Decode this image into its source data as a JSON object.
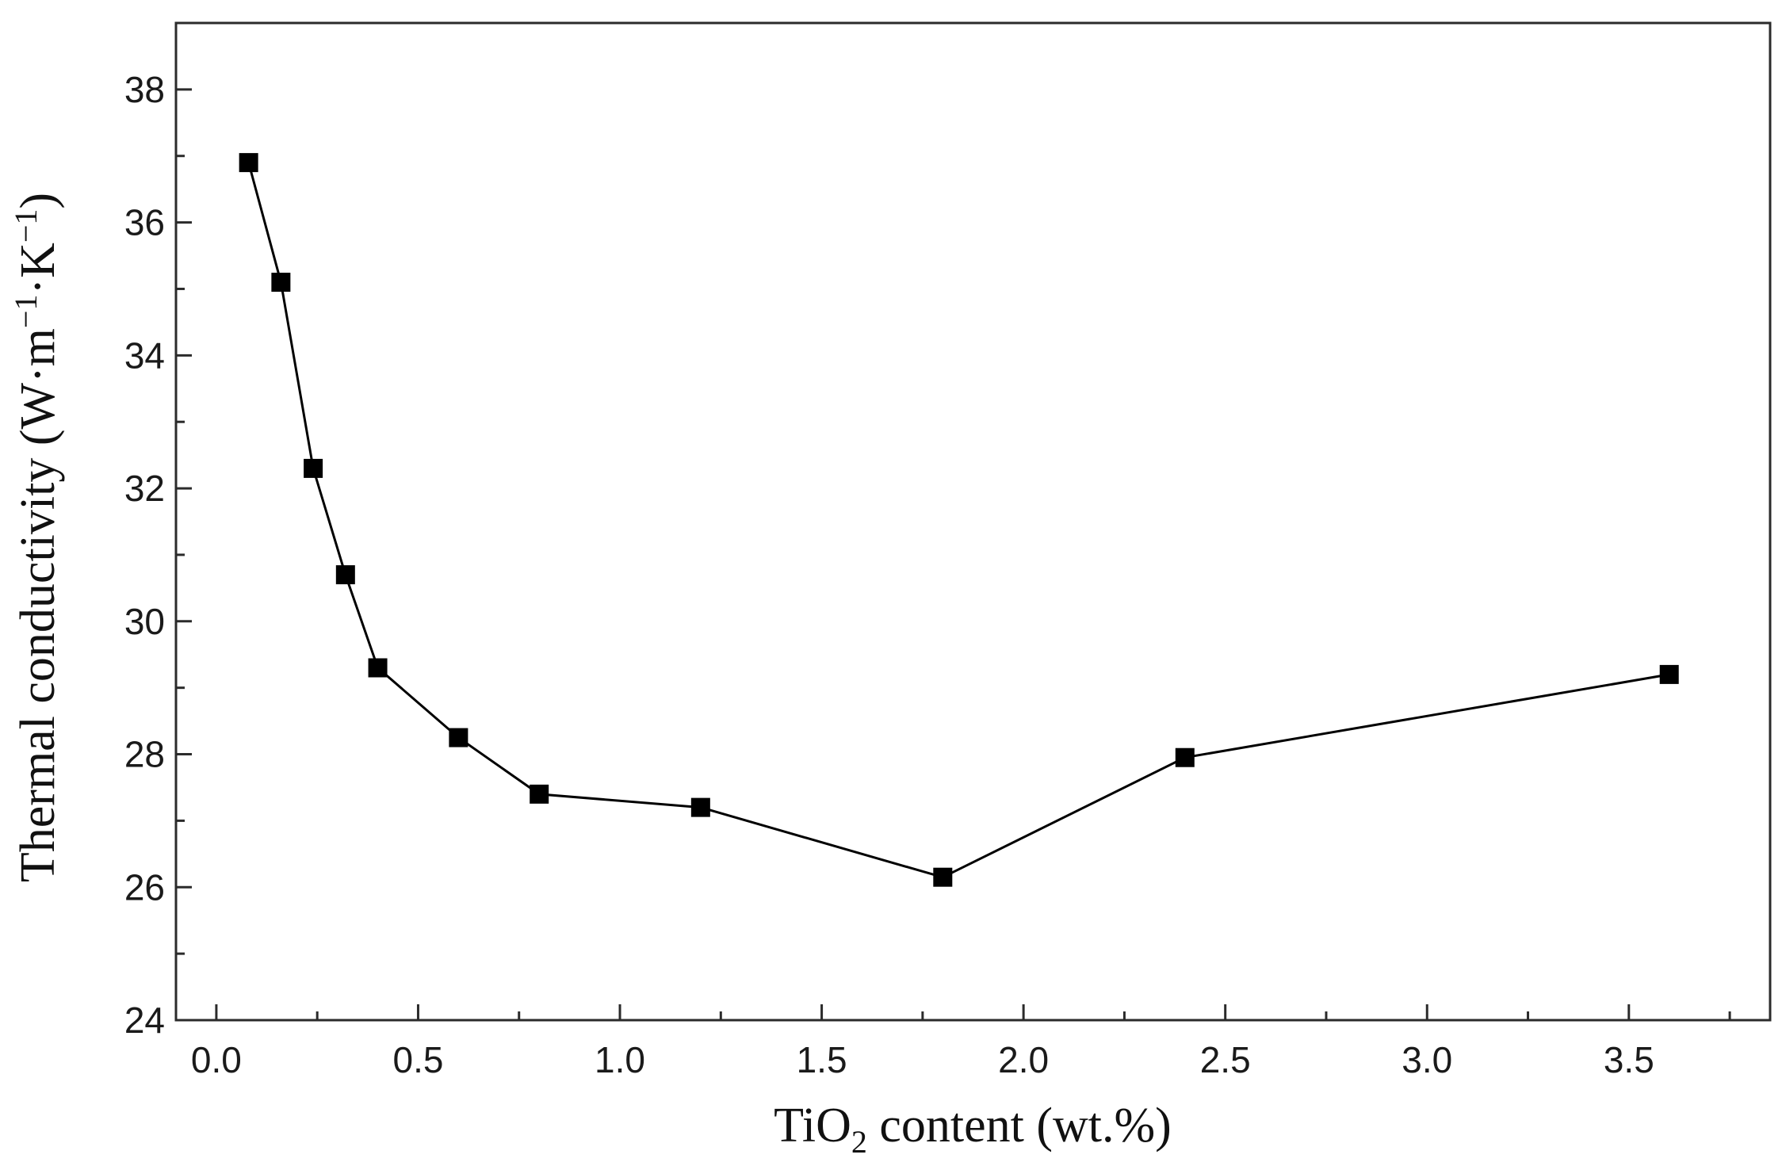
{
  "chart_data": {
    "type": "line",
    "title": "",
    "xlabel": {
      "prefix": "TiO",
      "subscript": "2",
      "suffix": " content (wt.%)"
    },
    "ylabel": {
      "text": "Thermal conductivity (W·m",
      "sup1": "−1",
      "mid": "·K",
      "sup2": "−1",
      "end": ")"
    },
    "xlim": [
      -0.1,
      3.85
    ],
    "ylim": [
      24,
      39
    ],
    "x_ticks": [
      0.0,
      0.5,
      1.0,
      1.5,
      2.0,
      2.5,
      3.0,
      3.5
    ],
    "x_tick_labels": [
      "0.0",
      "0.5",
      "1.0",
      "1.5",
      "2.0",
      "2.5",
      "3.0",
      "3.5"
    ],
    "x_minor_ticks": [
      0.25,
      0.75,
      1.25,
      1.75,
      2.25,
      2.75,
      3.25,
      3.75
    ],
    "y_ticks": [
      24,
      26,
      28,
      30,
      32,
      34,
      36,
      38
    ],
    "y_tick_labels": [
      "24",
      "26",
      "28",
      "30",
      "32",
      "34",
      "36",
      "38"
    ],
    "y_minor_ticks": [
      25,
      27,
      29,
      31,
      33,
      35,
      37
    ],
    "grid": false,
    "legend": "none",
    "series": [
      {
        "marker": "square",
        "color": "#000000",
        "x": [
          0.08,
          0.16,
          0.24,
          0.32,
          0.4,
          0.6,
          0.8,
          1.2,
          1.8,
          2.4,
          3.6
        ],
        "y": [
          36.9,
          35.1,
          32.3,
          30.7,
          29.3,
          28.25,
          27.4,
          27.2,
          26.15,
          27.95,
          29.2
        ]
      }
    ]
  }
}
